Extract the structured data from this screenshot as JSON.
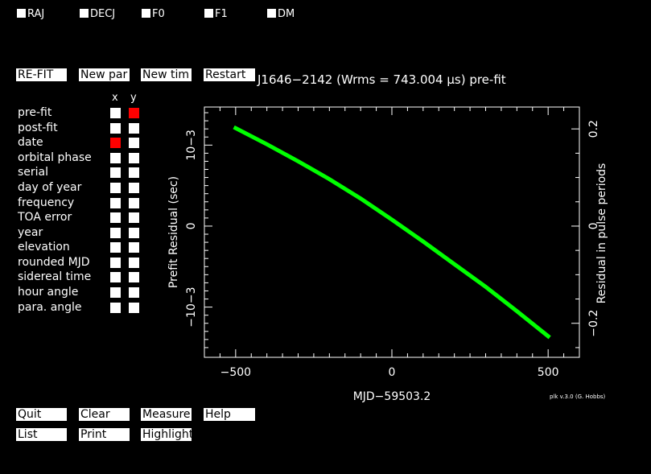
{
  "fit_params": [
    "RAJ",
    "DECJ",
    "F0",
    "F1",
    "DM"
  ],
  "buttons_top": [
    "RE-FIT",
    "New par",
    "New tim",
    "Restart"
  ],
  "plot_title": "J1646−2142 (Wrms = 743.004 μs) pre-fit",
  "axis_headers": {
    "x": "x",
    "y": "y"
  },
  "plot_options": [
    {
      "label": "pre-fit",
      "x": false,
      "y": true
    },
    {
      "label": "post-fit",
      "x": false,
      "y": false
    },
    {
      "label": "date",
      "x": true,
      "y": false
    },
    {
      "label": "orbital phase",
      "x": false,
      "y": false
    },
    {
      "label": "serial",
      "x": false,
      "y": false
    },
    {
      "label": "day of year",
      "x": false,
      "y": false
    },
    {
      "label": "frequency",
      "x": false,
      "y": false
    },
    {
      "label": "TOA error",
      "x": false,
      "y": false
    },
    {
      "label": "year",
      "x": false,
      "y": false
    },
    {
      "label": "elevation",
      "x": false,
      "y": false
    },
    {
      "label": "rounded MJD",
      "x": false,
      "y": false
    },
    {
      "label": "sidereal time",
      "x": false,
      "y": false
    },
    {
      "label": "hour angle",
      "x": false,
      "y": false
    },
    {
      "label": "para. angle",
      "x": false,
      "y": false
    }
  ],
  "buttons_bottom_row1": [
    "Quit",
    "Clear",
    "Measure",
    "Help"
  ],
  "buttons_bottom_row2": [
    "List",
    "Print",
    "Highlight"
  ],
  "credit": "plk v.3.0 (G. Hobbs)",
  "colors": {
    "background": "#000000",
    "series": "#00ff00",
    "selected": "#ff0000",
    "foreground": "#ffffff"
  },
  "chart_data": {
    "type": "line",
    "title": "J1646−2142 (Wrms = 743.004 μs) pre-fit",
    "xlabel": "MJD−59503.2",
    "ylabel": "Prefit Residual (sec)",
    "y2label": "Residual in pulse periods",
    "xlim": [
      -600,
      600
    ],
    "ylim": [
      -0.00162,
      0.00147
    ],
    "y2lim": [
      -0.27,
      0.245
    ],
    "x_ticks": [
      {
        "value": -500,
        "label": "−500"
      },
      {
        "value": 0,
        "label": "0"
      },
      {
        "value": 500,
        "label": "500"
      }
    ],
    "y_ticks": [
      {
        "value": 0.001,
        "label": "10−3"
      },
      {
        "value": 0,
        "label": "0"
      },
      {
        "value": -0.001,
        "label": "−10−3"
      }
    ],
    "y2_ticks": [
      {
        "value": 0.2,
        "label": "0.2"
      },
      {
        "value": 0,
        "label": "0"
      },
      {
        "value": -0.2,
        "label": "−0.2"
      }
    ],
    "series": [
      {
        "name": "pre-fit residuals",
        "x": [
          -500,
          -400,
          -300,
          -200,
          -100,
          0,
          100,
          200,
          300,
          400,
          500
        ],
        "y": [
          0.00121,
          0.00101,
          0.0008,
          0.00058,
          0.00034,
          8e-05,
          -0.00019,
          -0.00047,
          -0.00075,
          -0.00105,
          -0.00136
        ]
      }
    ]
  }
}
